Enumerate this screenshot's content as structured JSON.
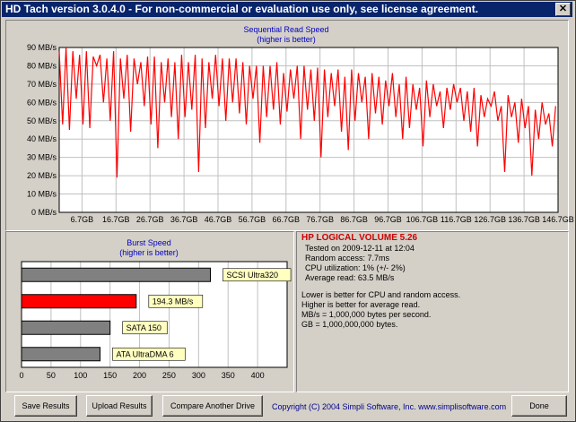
{
  "window": {
    "title": "HD Tach version 3.0.4.0  - For non-commercial or evaluation use only, see license agreement.",
    "close_icon": "close-icon"
  },
  "read_chart": {
    "title": "Sequential Read Speed",
    "subtitle": "(higher is better)"
  },
  "burst": {
    "title": "Burst Speed",
    "subtitle": "(higher is better)"
  },
  "info": {
    "drive_name": "HP LOGICAL VOLUME 5.26",
    "tested_on": "Tested on 2009-12-11 at 12:04",
    "random_access": "Random access: 7.7ms",
    "cpu_utilization": "CPU utilization: 1% (+/- 2%)",
    "average_read": "Average read: 63.5 MB/s",
    "note1": "Lower is better for CPU and random access.",
    "note2": "Higher is better for average read.",
    "note3": "MB/s = 1,000,000 bytes per second.",
    "note4": "GB = 1,000,000,000 bytes."
  },
  "buttons": {
    "save": "Save Results",
    "upload": "Upload Results",
    "compare": "Compare Another Drive",
    "done": "Done"
  },
  "footer": {
    "copyright": "Copyright (C) 2004 Simpli Software, Inc. www.simplisoftware.com"
  },
  "colors": {
    "read_line": "#ff0000",
    "selected_bar": "#ff0000",
    "other_bar": "#808080",
    "label_bg": "#ffffc0"
  },
  "chart_data": [
    {
      "type": "line",
      "title": "Sequential Read Speed",
      "subtitle": "(higher is better)",
      "ylim": [
        0,
        90
      ],
      "y_ticks": [
        "0 MB/s",
        "10 MB/s",
        "20 MB/s",
        "30 MB/s",
        "40 MB/s",
        "50 MB/s",
        "60 MB/s",
        "70 MB/s",
        "80 MB/s",
        "90 MB/s"
      ],
      "x_ticks": [
        "6.7GB",
        "16.7GB",
        "26.7GB",
        "36.7GB",
        "46.7GB",
        "56.7GB",
        "66.7GB",
        "76.7GB",
        "86.7GB",
        "96.7GB",
        "106.7GB",
        "116.7GB",
        "126.7GB",
        "136.7GB",
        "146.7GB"
      ],
      "x_tick_values": [
        6.7,
        16.7,
        26.7,
        36.7,
        46.7,
        56.7,
        66.7,
        76.7,
        86.7,
        96.7,
        106.7,
        116.7,
        126.7,
        136.7,
        146.7
      ],
      "xlim": [
        0,
        146.7
      ],
      "grid": true,
      "series": [
        {
          "x": [
            0,
            1,
            2,
            3,
            4,
            5,
            6,
            7,
            8,
            9,
            10,
            11,
            12,
            13,
            14,
            15,
            16,
            17,
            18,
            19,
            20,
            21,
            22,
            23,
            24,
            25,
            26,
            27,
            28,
            29,
            30,
            31,
            32,
            33,
            34,
            35,
            36,
            37,
            38,
            39,
            40,
            41,
            42,
            43,
            44,
            45,
            46,
            47,
            48,
            49,
            50,
            51,
            52,
            53,
            54,
            55,
            56,
            57,
            58,
            59,
            60,
            61,
            62,
            63,
            64,
            65,
            66,
            67,
            68,
            69,
            70,
            71,
            72,
            73,
            74,
            75,
            76,
            77,
            78,
            79,
            80,
            81,
            82,
            83,
            84,
            85,
            86,
            87,
            88,
            89,
            90,
            91,
            92,
            93,
            94,
            95,
            96,
            97,
            98,
            99,
            100,
            101,
            102,
            103,
            104,
            105,
            106,
            107,
            108,
            109,
            110,
            111,
            112,
            113,
            114,
            115,
            116,
            117,
            118,
            119,
            120,
            121,
            122,
            123,
            124,
            125,
            126,
            127,
            128,
            129,
            130,
            131,
            132,
            133,
            134,
            135,
            136,
            137,
            138,
            139,
            140,
            141,
            142,
            143,
            144,
            145,
            146
          ],
          "values": [
            88,
            48,
            90,
            45,
            88,
            62,
            86,
            48,
            88,
            46,
            85,
            80,
            86,
            60,
            84,
            50,
            88,
            19,
            84,
            62,
            86,
            44,
            84,
            70,
            82,
            58,
            85,
            48,
            85,
            35,
            82,
            60,
            84,
            52,
            82,
            40,
            86,
            52,
            82,
            56,
            86,
            22,
            84,
            46,
            82,
            62,
            86,
            58,
            84,
            50,
            84,
            60,
            84,
            54,
            82,
            48,
            80,
            62,
            80,
            38,
            80,
            52,
            80,
            56,
            82,
            48,
            76,
            55,
            78,
            62,
            80,
            40,
            80,
            56,
            78,
            50,
            79,
            30,
            78,
            52,
            76,
            58,
            78,
            44,
            74,
            34,
            78,
            50,
            76,
            60,
            74,
            40,
            76,
            54,
            74,
            48,
            72,
            58,
            76,
            52,
            70,
            40,
            74,
            46,
            70,
            56,
            68,
            36,
            72,
            52,
            70,
            58,
            66,
            46,
            68,
            56,
            70,
            60,
            68,
            50,
            66,
            44,
            68,
            36,
            64,
            52,
            62,
            58,
            66,
            50,
            58,
            22,
            64,
            52,
            60,
            38,
            62,
            46,
            58,
            20,
            56,
            40,
            60,
            48,
            54,
            36,
            58
          ]
        }
      ]
    },
    {
      "type": "bar",
      "title": "Burst Speed",
      "subtitle": "(higher is better)",
      "orientation": "horizontal",
      "xlim": [
        0,
        450
      ],
      "x_ticks": [
        "0",
        "50",
        "100",
        "150",
        "200",
        "250",
        "300",
        "350",
        "400"
      ],
      "x_tick_values": [
        0,
        50,
        100,
        150,
        200,
        250,
        300,
        350,
        400
      ],
      "categories": [
        "SCSI Ultra320",
        "194.3 MB/s",
        "SATA 150",
        "ATA UltraDMA 6"
      ],
      "values": [
        320,
        194.3,
        150,
        133
      ],
      "highlighted": [
        false,
        true,
        false,
        false
      ]
    }
  ]
}
